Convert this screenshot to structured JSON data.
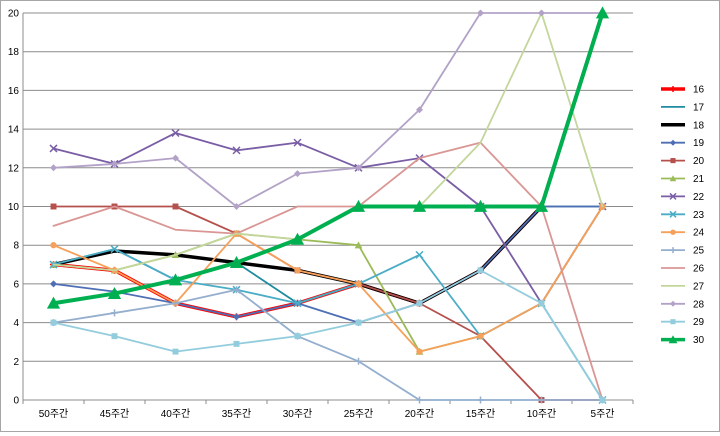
{
  "chart_data": {
    "type": "line",
    "title": "",
    "xlabel": "",
    "ylabel": "",
    "ylim": [
      0,
      20
    ],
    "yticks": [
      0,
      2,
      4,
      6,
      8,
      10,
      12,
      14,
      16,
      18,
      20
    ],
    "grid": "horizontal",
    "legend_position": "right",
    "categories": [
      "50주간",
      "45주간",
      "40주간",
      "35주간",
      "30주간",
      "25주간",
      "20주간",
      "15주간",
      "10주간",
      "5주간"
    ],
    "series": [
      {
        "name": "16",
        "color": "#ff0000",
        "marker": "plus",
        "values": [
          7,
          6.7,
          5,
          4.3,
          5,
          6,
          5,
          6.7,
          10,
          20
        ]
      },
      {
        "name": "17",
        "color": "#1f8aa0",
        "marker": "none",
        "values": [
          7,
          7.8,
          6.2,
          7.1,
          5,
          6,
          5,
          6.7,
          10,
          10
        ]
      },
      {
        "name": "18",
        "color": "#000000",
        "marker": "none",
        "values": [
          7,
          7.7,
          7.5,
          7.1,
          6.7,
          6,
          5,
          6.7,
          10,
          20
        ]
      },
      {
        "name": "19",
        "color": "#4f6fb5",
        "marker": "diamond",
        "values": [
          6,
          5.6,
          5,
          4.3,
          5,
          4,
          5,
          6.7,
          10,
          10
        ]
      },
      {
        "name": "20",
        "color": "#b5504c",
        "marker": "square",
        "values": [
          10,
          10,
          10,
          8.6,
          6.7,
          6,
          5,
          3.3,
          0,
          0
        ]
      },
      {
        "name": "21",
        "color": "#9bbb59",
        "marker": "triangle",
        "values": [
          7,
          6.7,
          7.5,
          8.6,
          8.3,
          8,
          2.5,
          3.3,
          5,
          10
        ]
      },
      {
        "name": "22",
        "color": "#7a5ea5",
        "marker": "x",
        "values": [
          13,
          12.2,
          13.8,
          12.9,
          13.3,
          12,
          12.5,
          10,
          5,
          10
        ]
      },
      {
        "name": "23",
        "color": "#4bacc6",
        "marker": "x",
        "values": [
          7,
          7.8,
          6.2,
          5.7,
          5,
          6,
          7.5,
          3.3,
          5,
          0
        ]
      },
      {
        "name": "24",
        "color": "#f6a05a",
        "marker": "circle",
        "values": [
          8,
          6.7,
          5,
          8.6,
          6.7,
          6,
          2.5,
          3.3,
          5,
          10
        ]
      },
      {
        "name": "25",
        "color": "#94aece",
        "marker": "plus",
        "values": [
          4,
          4.5,
          5,
          5.7,
          3.3,
          2,
          0,
          0,
          0,
          0
        ]
      },
      {
        "name": "26",
        "color": "#d99694",
        "marker": "none",
        "values": [
          9,
          10,
          8.8,
          8.6,
          10,
          10,
          12.5,
          13.3,
          10,
          0
        ]
      },
      {
        "name": "27",
        "color": "#c3d69b",
        "marker": "none",
        "values": [
          7,
          6.7,
          7.5,
          8.6,
          8.3,
          10,
          10,
          13.3,
          20,
          10
        ]
      },
      {
        "name": "28",
        "color": "#b3a2c7",
        "marker": "diamond",
        "values": [
          12,
          12.2,
          12.5,
          10,
          11.7,
          12,
          15,
          20,
          20,
          20
        ]
      },
      {
        "name": "29",
        "color": "#93cddd",
        "marker": "square",
        "values": [
          4,
          3.3,
          2.5,
          2.9,
          3.3,
          4,
          5,
          6.7,
          5,
          0
        ]
      },
      {
        "name": "30",
        "color": "#00b050",
        "marker": "triangle",
        "values": [
          5,
          5.5,
          6.2,
          7.1,
          8.3,
          10,
          10,
          10,
          10,
          20
        ]
      }
    ]
  }
}
